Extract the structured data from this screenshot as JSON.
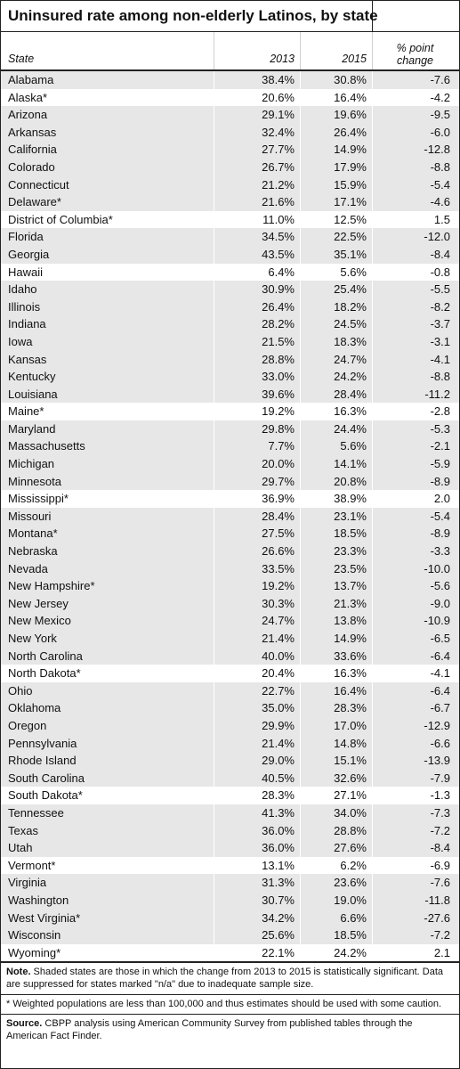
{
  "title": "Uninsured rate among non-elderly Latinos, by state",
  "columns": {
    "state": "State",
    "y2013": "2013",
    "y2015": "2015",
    "change_line1": "% point",
    "change_line2": "change"
  },
  "rows": [
    {
      "state": "Alabama",
      "y2013": "38.4%",
      "y2015": "30.8%",
      "change": "-7.6",
      "shaded": true
    },
    {
      "state": "Alaska*",
      "y2013": "20.6%",
      "y2015": "16.4%",
      "change": "-4.2",
      "shaded": false
    },
    {
      "state": "Arizona",
      "y2013": "29.1%",
      "y2015": "19.6%",
      "change": "-9.5",
      "shaded": true
    },
    {
      "state": "Arkansas",
      "y2013": "32.4%",
      "y2015": "26.4%",
      "change": "-6.0",
      "shaded": true
    },
    {
      "state": "California",
      "y2013": "27.7%",
      "y2015": "14.9%",
      "change": "-12.8",
      "shaded": true
    },
    {
      "state": "Colorado",
      "y2013": "26.7%",
      "y2015": "17.9%",
      "change": "-8.8",
      "shaded": true
    },
    {
      "state": "Connecticut",
      "y2013": "21.2%",
      "y2015": "15.9%",
      "change": "-5.4",
      "shaded": true
    },
    {
      "state": "Delaware*",
      "y2013": "21.6%",
      "y2015": "17.1%",
      "change": "-4.6",
      "shaded": true
    },
    {
      "state": "District of Columbia*",
      "y2013": "11.0%",
      "y2015": "12.5%",
      "change": "1.5",
      "shaded": false
    },
    {
      "state": "Florida",
      "y2013": "34.5%",
      "y2015": "22.5%",
      "change": "-12.0",
      "shaded": true
    },
    {
      "state": "Georgia",
      "y2013": "43.5%",
      "y2015": "35.1%",
      "change": "-8.4",
      "shaded": true
    },
    {
      "state": "Hawaii",
      "y2013": "6.4%",
      "y2015": "5.6%",
      "change": "-0.8",
      "shaded": false
    },
    {
      "state": "Idaho",
      "y2013": "30.9%",
      "y2015": "25.4%",
      "change": "-5.5",
      "shaded": true
    },
    {
      "state": "Illinois",
      "y2013": "26.4%",
      "y2015": "18.2%",
      "change": "-8.2",
      "shaded": true
    },
    {
      "state": "Indiana",
      "y2013": "28.2%",
      "y2015": "24.5%",
      "change": "-3.7",
      "shaded": true
    },
    {
      "state": "Iowa",
      "y2013": "21.5%",
      "y2015": "18.3%",
      "change": "-3.1",
      "shaded": true
    },
    {
      "state": "Kansas",
      "y2013": "28.8%",
      "y2015": "24.7%",
      "change": "-4.1",
      "shaded": true
    },
    {
      "state": "Kentucky",
      "y2013": "33.0%",
      "y2015": "24.2%",
      "change": "-8.8",
      "shaded": true
    },
    {
      "state": "Louisiana",
      "y2013": "39.6%",
      "y2015": "28.4%",
      "change": "-11.2",
      "shaded": true
    },
    {
      "state": "Maine*",
      "y2013": "19.2%",
      "y2015": "16.3%",
      "change": "-2.8",
      "shaded": false
    },
    {
      "state": "Maryland",
      "y2013": "29.8%",
      "y2015": "24.4%",
      "change": "-5.3",
      "shaded": true
    },
    {
      "state": "Massachusetts",
      "y2013": "7.7%",
      "y2015": "5.6%",
      "change": "-2.1",
      "shaded": true
    },
    {
      "state": "Michigan",
      "y2013": "20.0%",
      "y2015": "14.1%",
      "change": "-5.9",
      "shaded": true
    },
    {
      "state": "Minnesota",
      "y2013": "29.7%",
      "y2015": "20.8%",
      "change": "-8.9",
      "shaded": true
    },
    {
      "state": "Mississippi*",
      "y2013": "36.9%",
      "y2015": "38.9%",
      "change": "2.0",
      "shaded": false
    },
    {
      "state": "Missouri",
      "y2013": "28.4%",
      "y2015": "23.1%",
      "change": "-5.4",
      "shaded": true
    },
    {
      "state": "Montana*",
      "y2013": "27.5%",
      "y2015": "18.5%",
      "change": "-8.9",
      "shaded": true
    },
    {
      "state": "Nebraska",
      "y2013": "26.6%",
      "y2015": "23.3%",
      "change": "-3.3",
      "shaded": true
    },
    {
      "state": "Nevada",
      "y2013": "33.5%",
      "y2015": "23.5%",
      "change": "-10.0",
      "shaded": true
    },
    {
      "state": "New Hampshire*",
      "y2013": "19.2%",
      "y2015": "13.7%",
      "change": "-5.6",
      "shaded": true
    },
    {
      "state": "New Jersey",
      "y2013": "30.3%",
      "y2015": "21.3%",
      "change": "-9.0",
      "shaded": true
    },
    {
      "state": "New Mexico",
      "y2013": "24.7%",
      "y2015": "13.8%",
      "change": "-10.9",
      "shaded": true
    },
    {
      "state": "New York",
      "y2013": "21.4%",
      "y2015": "14.9%",
      "change": "-6.5",
      "shaded": true
    },
    {
      "state": "North Carolina",
      "y2013": "40.0%",
      "y2015": "33.6%",
      "change": "-6.4",
      "shaded": true
    },
    {
      "state": "North Dakota*",
      "y2013": "20.4%",
      "y2015": "16.3%",
      "change": "-4.1",
      "shaded": false
    },
    {
      "state": "Ohio",
      "y2013": "22.7%",
      "y2015": "16.4%",
      "change": "-6.4",
      "shaded": true
    },
    {
      "state": "Oklahoma",
      "y2013": "35.0%",
      "y2015": "28.3%",
      "change": "-6.7",
      "shaded": true
    },
    {
      "state": "Oregon",
      "y2013": "29.9%",
      "y2015": "17.0%",
      "change": "-12.9",
      "shaded": true
    },
    {
      "state": "Pennsylvania",
      "y2013": "21.4%",
      "y2015": "14.8%",
      "change": "-6.6",
      "shaded": true
    },
    {
      "state": "Rhode Island",
      "y2013": "29.0%",
      "y2015": "15.1%",
      "change": "-13.9",
      "shaded": true
    },
    {
      "state": "South Carolina",
      "y2013": "40.5%",
      "y2015": "32.6%",
      "change": "-7.9",
      "shaded": true
    },
    {
      "state": "South Dakota*",
      "y2013": "28.3%",
      "y2015": "27.1%",
      "change": "-1.3",
      "shaded": false
    },
    {
      "state": "Tennessee",
      "y2013": "41.3%",
      "y2015": "34.0%",
      "change": "-7.3",
      "shaded": true
    },
    {
      "state": "Texas",
      "y2013": "36.0%",
      "y2015": "28.8%",
      "change": "-7.2",
      "shaded": true
    },
    {
      "state": "Utah",
      "y2013": "36.0%",
      "y2015": "27.6%",
      "change": "-8.4",
      "shaded": true
    },
    {
      "state": "Vermont*",
      "y2013": "13.1%",
      "y2015": "6.2%",
      "change": "-6.9",
      "shaded": false
    },
    {
      "state": "Virginia",
      "y2013": "31.3%",
      "y2015": "23.6%",
      "change": "-7.6",
      "shaded": true
    },
    {
      "state": "Washington",
      "y2013": "30.7%",
      "y2015": "19.0%",
      "change": "-11.8",
      "shaded": true
    },
    {
      "state": "West Virginia*",
      "y2013": "34.2%",
      "y2015": "6.6%",
      "change": "-27.6",
      "shaded": true
    },
    {
      "state": "Wisconsin",
      "y2013": "25.6%",
      "y2015": "18.5%",
      "change": "-7.2",
      "shaded": true
    },
    {
      "state": "Wyoming*",
      "y2013": "22.1%",
      "y2015": "24.2%",
      "change": "2.1",
      "shaded": false
    }
  ],
  "notes": {
    "note_label": "Note.",
    "note_text": " Shaded states are those in which the change from 2013 to 2015 is statistically significant.  Data are suppressed for states marked \"n/a\" due to inadequate sample size.",
    "asterisk_text": "* Weighted populations are less than 100,000 and thus estimates should be used with some caution.",
    "source_label": "Source.",
    "source_text": "  CBPP analysis using American Community Survey from published tables through the American Fact Finder."
  },
  "colors": {
    "shade": "#e7e7e7",
    "border": "#222222"
  }
}
